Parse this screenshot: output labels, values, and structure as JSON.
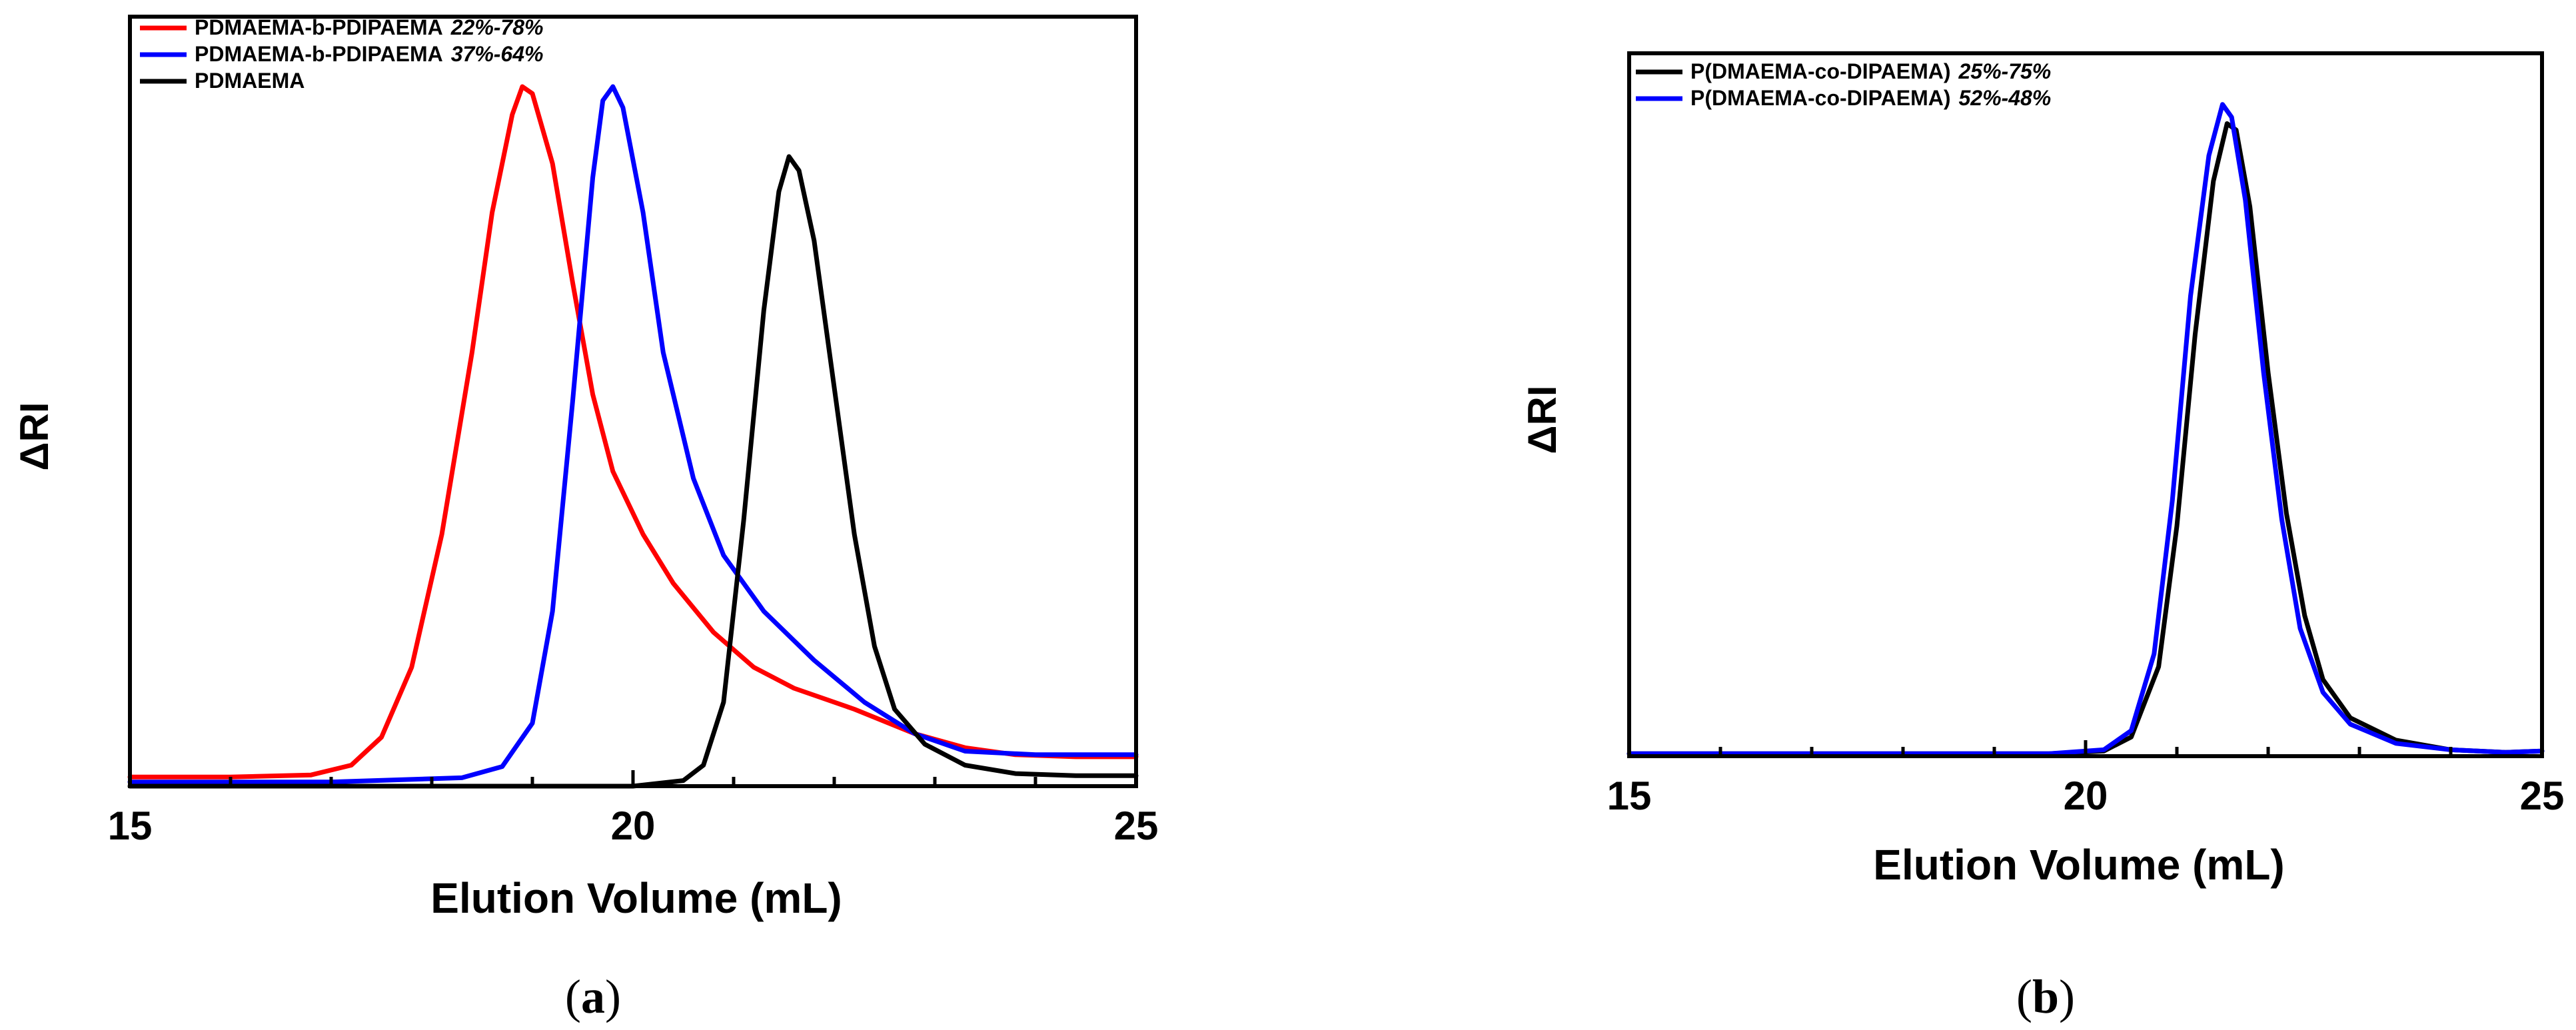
{
  "chart_data": [
    {
      "type": "line",
      "panel_label": "a",
      "xlabel": "Elution Volume (mL)",
      "ylabel": "ΔRI",
      "xlim": [
        15,
        25
      ],
      "ylim": [
        0,
        1.1
      ],
      "xticks": [
        15,
        20,
        25
      ],
      "legend_position": "top-left",
      "series": [
        {
          "name": "PDMAEMA-b-PDIPAEMA",
          "composition": "22%-78%",
          "color": "#ff0000",
          "points": [
            [
              15,
              0.013
            ],
            [
              16,
              0.013
            ],
            [
              16.8,
              0.016
            ],
            [
              17.2,
              0.03
            ],
            [
              17.5,
              0.07
            ],
            [
              17.8,
              0.17
            ],
            [
              18.1,
              0.36
            ],
            [
              18.4,
              0.62
            ],
            [
              18.6,
              0.82
            ],
            [
              18.8,
              0.96
            ],
            [
              18.9,
              1.0
            ],
            [
              19.0,
              0.99
            ],
            [
              19.2,
              0.89
            ],
            [
              19.4,
              0.72
            ],
            [
              19.6,
              0.56
            ],
            [
              19.8,
              0.45
            ],
            [
              20.1,
              0.36
            ],
            [
              20.4,
              0.29
            ],
            [
              20.8,
              0.22
            ],
            [
              21.2,
              0.17
            ],
            [
              21.6,
              0.14
            ],
            [
              22.2,
              0.11
            ],
            [
              22.8,
              0.075
            ],
            [
              23.3,
              0.055
            ],
            [
              23.8,
              0.045
            ],
            [
              24.4,
              0.042
            ],
            [
              25,
              0.042
            ]
          ]
        },
        {
          "name": "PDMAEMA-b-PDIPAEMA",
          "composition": "37%-64%",
          "color": "#0000ff",
          "points": [
            [
              15,
              0.006
            ],
            [
              17,
              0.006
            ],
            [
              18.3,
              0.012
            ],
            [
              18.7,
              0.028
            ],
            [
              19.0,
              0.09
            ],
            [
              19.2,
              0.25
            ],
            [
              19.4,
              0.55
            ],
            [
              19.6,
              0.87
            ],
            [
              19.7,
              0.98
            ],
            [
              19.8,
              1.0
            ],
            [
              19.9,
              0.97
            ],
            [
              20.1,
              0.82
            ],
            [
              20.3,
              0.62
            ],
            [
              20.6,
              0.44
            ],
            [
              20.9,
              0.33
            ],
            [
              21.3,
              0.25
            ],
            [
              21.8,
              0.18
            ],
            [
              22.3,
              0.12
            ],
            [
              22.8,
              0.075
            ],
            [
              23.3,
              0.05
            ],
            [
              24,
              0.045
            ],
            [
              25,
              0.045
            ]
          ]
        },
        {
          "name": "PDMAEMA",
          "composition": "",
          "color": "#000000",
          "points": [
            [
              15,
              0.0
            ],
            [
              20,
              0.0
            ],
            [
              20.5,
              0.008
            ],
            [
              20.7,
              0.03
            ],
            [
              20.9,
              0.12
            ],
            [
              21.1,
              0.38
            ],
            [
              21.3,
              0.68
            ],
            [
              21.45,
              0.85
            ],
            [
              21.55,
              0.9
            ],
            [
              21.65,
              0.88
            ],
            [
              21.8,
              0.78
            ],
            [
              22.0,
              0.57
            ],
            [
              22.2,
              0.36
            ],
            [
              22.4,
              0.2
            ],
            [
              22.6,
              0.11
            ],
            [
              22.9,
              0.06
            ],
            [
              23.3,
              0.03
            ],
            [
              23.8,
              0.018
            ],
            [
              24.4,
              0.015
            ],
            [
              25,
              0.015
            ]
          ]
        }
      ]
    },
    {
      "type": "line",
      "panel_label": "b",
      "xlabel": "Elution Volume (mL)",
      "ylabel": "ΔRI",
      "xlim": [
        15,
        25
      ],
      "ylim": [
        0,
        1.1
      ],
      "xticks": [
        15,
        20,
        25
      ],
      "legend_position": "top-left",
      "series": [
        {
          "name": "P(DMAEMA-co-DIPAEMA)",
          "composition": "25%-75%",
          "color": "#000000",
          "points": [
            [
              15,
              0.004
            ],
            [
              19.6,
              0.004
            ],
            [
              20.2,
              0.008
            ],
            [
              20.5,
              0.03
            ],
            [
              20.8,
              0.14
            ],
            [
              21.0,
              0.36
            ],
            [
              21.2,
              0.66
            ],
            [
              21.4,
              0.9
            ],
            [
              21.55,
              0.99
            ],
            [
              21.65,
              0.98
            ],
            [
              21.8,
              0.86
            ],
            [
              22.0,
              0.6
            ],
            [
              22.2,
              0.38
            ],
            [
              22.4,
              0.22
            ],
            [
              22.6,
              0.12
            ],
            [
              22.9,
              0.06
            ],
            [
              23.4,
              0.025
            ],
            [
              24,
              0.01
            ],
            [
              24.6,
              0.006
            ],
            [
              25,
              0.008
            ]
          ]
        },
        {
          "name": "P(DMAEMA-co-DIPAEMA)",
          "composition": "52%-48%",
          "color": "#0000ff",
          "points": [
            [
              15,
              0.004
            ],
            [
              19.6,
              0.004
            ],
            [
              20.2,
              0.01
            ],
            [
              20.5,
              0.04
            ],
            [
              20.75,
              0.16
            ],
            [
              20.95,
              0.4
            ],
            [
              21.15,
              0.72
            ],
            [
              21.35,
              0.94
            ],
            [
              21.5,
              1.02
            ],
            [
              21.6,
              1.0
            ],
            [
              21.75,
              0.87
            ],
            [
              21.95,
              0.6
            ],
            [
              22.15,
              0.37
            ],
            [
              22.35,
              0.2
            ],
            [
              22.6,
              0.1
            ],
            [
              22.9,
              0.05
            ],
            [
              23.4,
              0.02
            ],
            [
              24,
              0.01
            ],
            [
              24.6,
              0.006
            ],
            [
              25,
              0.008
            ]
          ]
        }
      ]
    }
  ]
}
